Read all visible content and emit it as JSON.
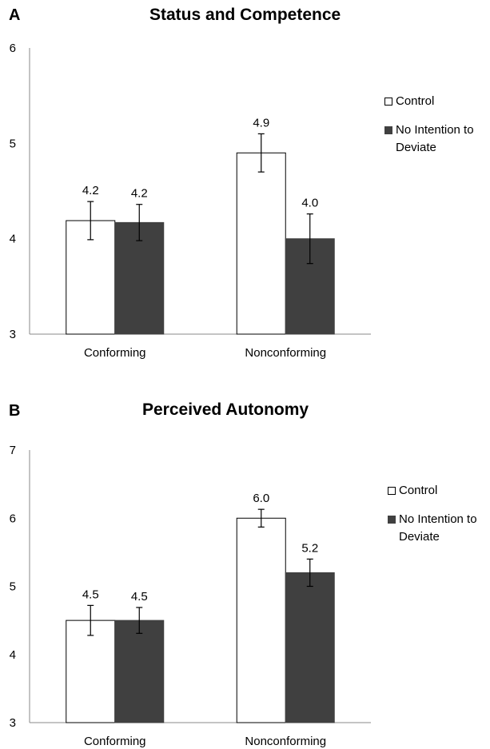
{
  "chart_data": [
    {
      "type": "bar",
      "panel_letter": "A",
      "title": "Status and Competence",
      "categories": [
        "Conforming",
        "Nonconforming"
      ],
      "series": [
        {
          "name": "Control",
          "color": "#ffffff",
          "values": [
            4.19,
            4.9
          ],
          "labels": [
            "4.2",
            "4.9"
          ],
          "error": [
            0.2,
            0.2
          ]
        },
        {
          "name": "No Intention to Deviate",
          "color": "#404040",
          "values": [
            4.17,
            4.0
          ],
          "labels": [
            "4.2",
            "4.0"
          ],
          "error": [
            0.19,
            0.26
          ]
        }
      ],
      "ylim": [
        3,
        6
      ],
      "yticks": [
        "3",
        "4",
        "5",
        "6"
      ],
      "grid": false,
      "legend_position": "right"
    },
    {
      "type": "bar",
      "panel_letter": "B",
      "title": "Perceived Autonomy",
      "categories": [
        "Conforming",
        "Nonconforming"
      ],
      "series": [
        {
          "name": "Control",
          "color": "#ffffff",
          "values": [
            4.5,
            6.0
          ],
          "labels": [
            "4.5",
            "6.0"
          ],
          "error": [
            0.22,
            0.13
          ]
        },
        {
          "name": "No Intention to Deviate",
          "color": "#404040",
          "values": [
            4.5,
            5.2
          ],
          "labels": [
            "4.5",
            "5.2"
          ],
          "error": [
            0.19,
            0.2
          ]
        }
      ],
      "ylim": [
        3,
        7
      ],
      "yticks": [
        "3",
        "4",
        "5",
        "6",
        "7"
      ],
      "grid": false,
      "legend_position": "right"
    }
  ]
}
